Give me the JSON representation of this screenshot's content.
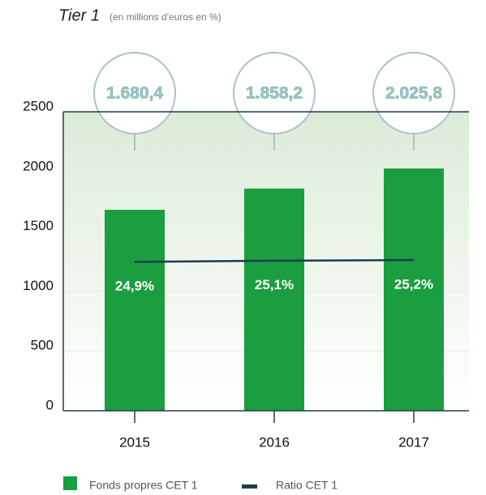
{
  "chart_data": {
    "type": "bar",
    "title": "Tier 1",
    "subtitle": "(en millions d'euros en %)",
    "categories": [
      "2015",
      "2016",
      "2017"
    ],
    "series": [
      {
        "name": "Fonds propres CET 1",
        "type": "bar",
        "color": "#1a9e3f",
        "values": [
          1680.4,
          1858.2,
          2025.8
        ],
        "value_labels": [
          "1.680,4",
          "1.858,2",
          "2.025,8"
        ]
      },
      {
        "name": "Ratio CET 1",
        "type": "line",
        "axis": "y2",
        "color": "#1b3d4f",
        "values": [
          24.9,
          25.1,
          25.2
        ],
        "value_labels": [
          "24,9%",
          "25,1%",
          "25,2%"
        ]
      }
    ],
    "ylim": [
      0,
      2500
    ],
    "yticks": [
      0,
      500,
      1000,
      1500,
      2000,
      2500
    ],
    "y2lim": [
      0,
      50
    ],
    "grid": true,
    "legend": "bottom"
  }
}
